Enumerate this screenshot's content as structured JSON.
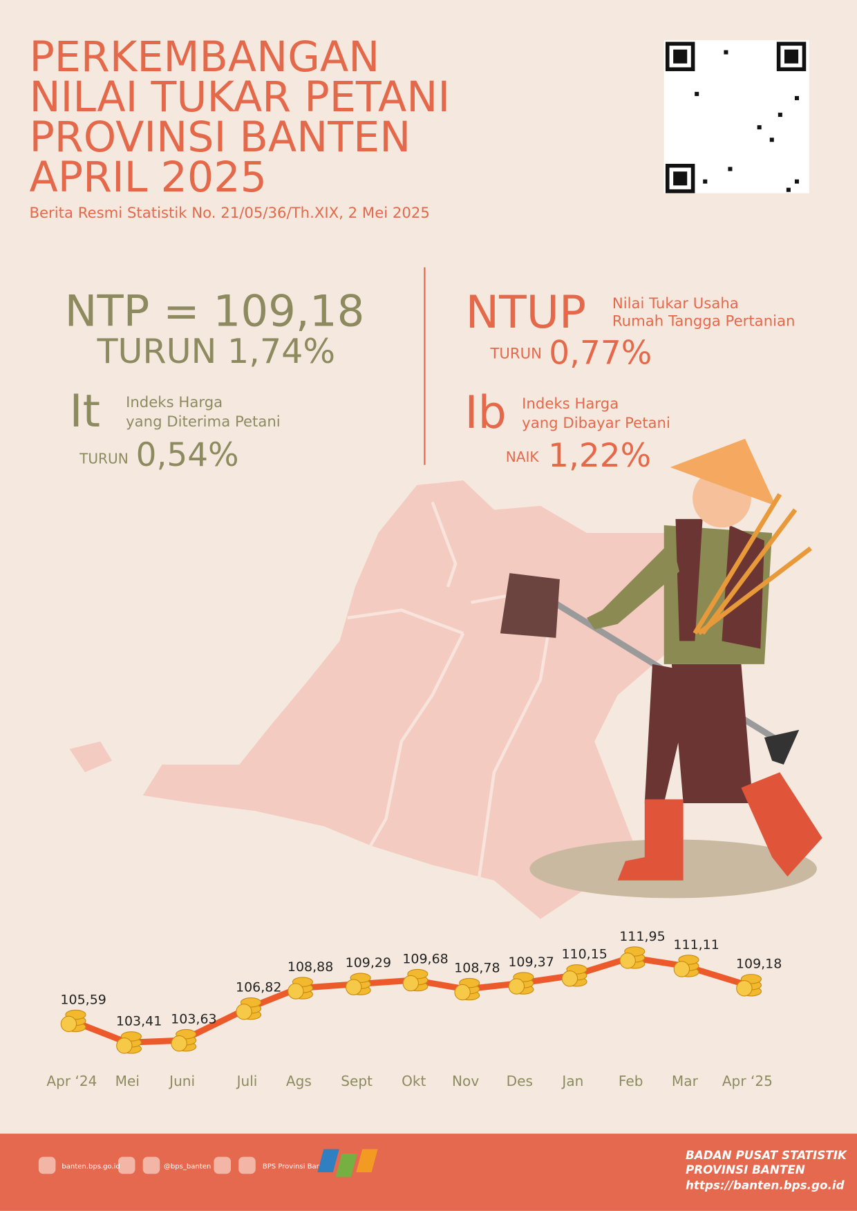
{
  "header": {
    "title_lines": [
      "PERKEMBANGAN",
      "NILAI TUKAR PETANI",
      "PROVINSI BANTEN",
      "APRIL 2025"
    ],
    "subtitle": "Berita Resmi Statistik No. 21/05/36/Th.XIX, 2 Mei 2025"
  },
  "ntp": {
    "main": "NTP = 109,18",
    "change": "TURUN 1,74%"
  },
  "it": {
    "symbol": "It",
    "desc": [
      "Indeks Harga",
      "yang Diterima Petani"
    ],
    "direction": "TURUN",
    "change": "0,54%"
  },
  "ntup": {
    "symbol": "NTUP",
    "desc": [
      "Nilai Tukar Usaha",
      "Rumah Tangga Pertanian"
    ],
    "direction": "TURUN",
    "change": "0,77%"
  },
  "ib": {
    "symbol": "Ib",
    "desc": [
      "Indeks Harga",
      "yang Dibayar Petani"
    ],
    "direction": "NAIK",
    "change": "1,22%"
  },
  "chart_data": {
    "type": "line",
    "color": "#ec5a2c",
    "categories": [
      "Apr ‘24",
      "Mei",
      "Juni",
      "Juli",
      "Ags",
      "Sept",
      "Okt",
      "Nov",
      "Des",
      "Jan",
      "Feb",
      "Mar",
      "Apr ‘25"
    ],
    "values": [
      105.59,
      103.41,
      103.63,
      106.82,
      108.88,
      109.29,
      109.68,
      108.78,
      109.37,
      110.15,
      111.95,
      111.11,
      109.18
    ],
    "value_labels": [
      "105,59",
      "103,41",
      "103,63",
      "106,82",
      "108,88",
      "109,29",
      "109,68",
      "108,78",
      "109,37",
      "110,15",
      "111,95",
      "111,11",
      "109,18"
    ]
  },
  "footer": {
    "website": "banten.bps.go.id",
    "social": "@bps_banten",
    "youtube": "BPS Provinsi Banten",
    "org": [
      "BADAN PUSAT STATISTIK",
      "PROVINSI BANTEN"
    ],
    "url": "https://banten.bps.go.id"
  }
}
